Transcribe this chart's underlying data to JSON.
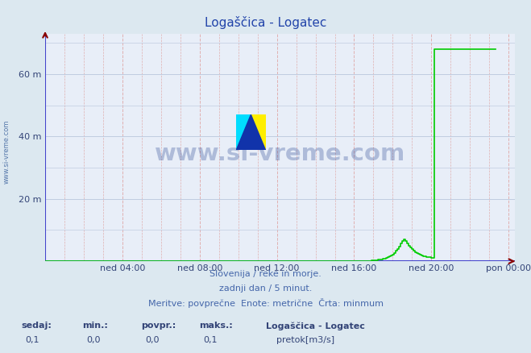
{
  "title": "Logaščica - Logatec",
  "title_color": "#2244aa",
  "bg_color": "#dce8f0",
  "plot_bg_color": "#e8eef8",
  "grid_color_h": "#c0cce0",
  "grid_color_v": "#e0b0b0",
  "ytick_labels": [
    "20 m",
    "40 m",
    "60 m"
  ],
  "ytick_values": [
    20,
    40,
    60
  ],
  "ylim": [
    0,
    73
  ],
  "xtick_labels": [
    "ned 04:00",
    "ned 08:00",
    "ned 12:00",
    "ned 16:00",
    "ned 20:00",
    "pon 00:00"
  ],
  "xtick_values": [
    48,
    96,
    144,
    192,
    240,
    288
  ],
  "xlim": [
    0,
    292
  ],
  "line_color": "#00cc00",
  "line_width": 1.2,
  "axis_line_color": "#4444cc",
  "arrow_color": "#880000",
  "watermark": "www.si-vreme.com",
  "watermark_color": "#1a3a8a",
  "watermark_alpha": 0.28,
  "footer_line1": "Slovenija / reke in morje.",
  "footer_line2": "zadnji dan / 5 minut.",
  "footer_line3": "Meritve: povprečne  Enote: metrične  Črta: minmum",
  "footer_color": "#4466aa",
  "stats_labels": [
    "sedaj:",
    "min.:",
    "povpr.:",
    "maks.:"
  ],
  "stats_values": [
    "0,1",
    "0,0",
    "0,0",
    "0,1"
  ],
  "stats_color": "#334477",
  "legend_label": "Logaščica - Logatec",
  "legend_series": "pretok[m3/s]",
  "legend_color": "#00cc00",
  "left_label_color": "#5577aa",
  "left_label": "www.si-vreme.com",
  "rise_data": [
    0,
    0,
    0,
    0,
    0,
    0,
    0,
    0,
    0,
    0,
    0,
    0,
    0,
    0,
    0,
    0,
    0,
    0,
    0,
    0,
    0,
    0,
    0,
    0,
    0,
    0,
    0,
    0,
    0,
    0,
    0,
    0,
    0,
    0,
    0,
    0,
    0,
    0,
    0,
    0,
    0,
    0,
    0,
    0,
    0,
    0,
    0,
    0,
    0,
    0,
    0,
    0,
    0,
    0,
    0,
    0,
    0,
    0,
    0,
    0,
    0,
    0,
    0,
    0,
    0,
    0,
    0,
    0,
    0,
    0,
    0,
    0,
    0,
    0,
    0,
    0,
    0,
    0,
    0,
    0,
    0,
    0,
    0,
    0,
    0,
    0,
    0,
    0,
    0,
    0,
    0,
    0,
    0,
    0,
    0,
    0,
    0,
    0,
    0,
    0,
    0,
    0,
    0,
    0,
    0,
    0,
    0,
    0,
    0,
    0,
    0,
    0,
    0,
    0,
    0,
    0,
    0,
    0,
    0,
    0,
    0,
    0,
    0,
    0,
    0,
    0,
    0,
    0,
    0,
    0,
    0,
    0,
    0,
    0,
    0,
    0,
    0,
    0,
    0,
    0,
    0,
    0,
    0,
    0,
    0,
    0,
    0,
    0,
    0,
    0,
    0,
    0,
    0,
    0,
    0,
    0,
    0,
    0,
    0,
    0,
    0,
    0,
    0,
    0,
    0,
    0,
    0,
    0,
    0,
    0,
    0,
    0,
    0,
    0,
    0,
    0,
    0,
    0,
    0,
    0,
    0,
    0,
    0,
    0,
    0,
    0,
    0,
    0,
    0,
    0,
    0,
    0,
    0.1,
    0.1,
    0.1,
    0.1,
    0.1,
    0.1,
    0.1,
    0.1,
    0.1,
    0.1,
    0.15,
    0.2,
    0.25,
    0.35,
    0.4,
    0.5,
    0.55,
    0.65,
    0.75,
    0.85,
    1.0,
    1.2,
    1.5,
    1.8,
    2.2,
    2.7,
    3.3,
    4.0,
    4.8,
    5.6,
    6.4,
    7.0,
    6.4,
    5.6,
    4.9,
    4.3,
    3.8,
    3.3,
    2.9,
    2.6,
    2.3,
    2.1,
    1.9,
    1.7,
    1.5,
    1.4,
    1.3,
    1.2,
    1.1,
    1.0,
    68,
    68,
    68,
    68,
    68,
    68,
    68,
    68,
    68,
    68,
    68,
    68,
    68,
    68,
    68,
    68,
    68,
    68,
    68,
    68,
    68,
    68,
    68,
    68,
    68,
    68,
    68,
    68,
    68,
    68,
    68,
    68,
    68,
    68,
    68,
    68,
    68,
    68,
    68
  ]
}
